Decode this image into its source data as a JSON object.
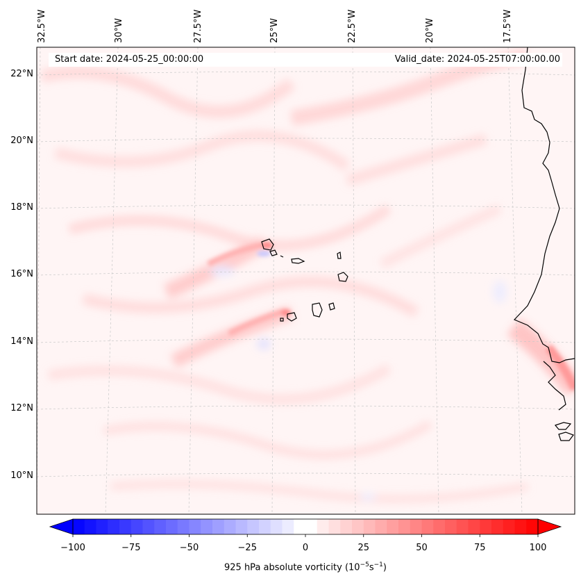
{
  "map": {
    "start_date": "Start date: 2024-05-25_00:00:00",
    "valid_date": "Valid_date: 2024-05-25T07:00:00.00",
    "lon_labels": [
      "32.5°W",
      "30°W",
      "27.5°W",
      "25°W",
      "22.5°W",
      "20°W",
      "17.5°W"
    ],
    "lat_labels": [
      "22°N",
      "20°N",
      "18°N",
      "16°N",
      "14°N",
      "12°N",
      "10°N"
    ],
    "field": "925 hPa absolute vorticity",
    "colors": {
      "negative_end": "#0000ff",
      "positive_end": "#ff0000",
      "coastline": "#000000",
      "gridline": "#bbbbbb",
      "background_tint": "#fff4f4"
    }
  },
  "colorbar": {
    "min": -100,
    "max": 100,
    "step": 5,
    "tick_labels": [
      "−100",
      "−75",
      "−50",
      "−25",
      "0",
      "25",
      "50",
      "75",
      "100"
    ],
    "tick_values": [
      -100,
      -75,
      -50,
      -25,
      0,
      25,
      50,
      75,
      100
    ],
    "label_prefix": "925 hPa absolute vorticity (10",
    "label_exp1": "−5",
    "label_mid": "s",
    "label_exp2": "−1",
    "label_suffix": ")"
  }
}
